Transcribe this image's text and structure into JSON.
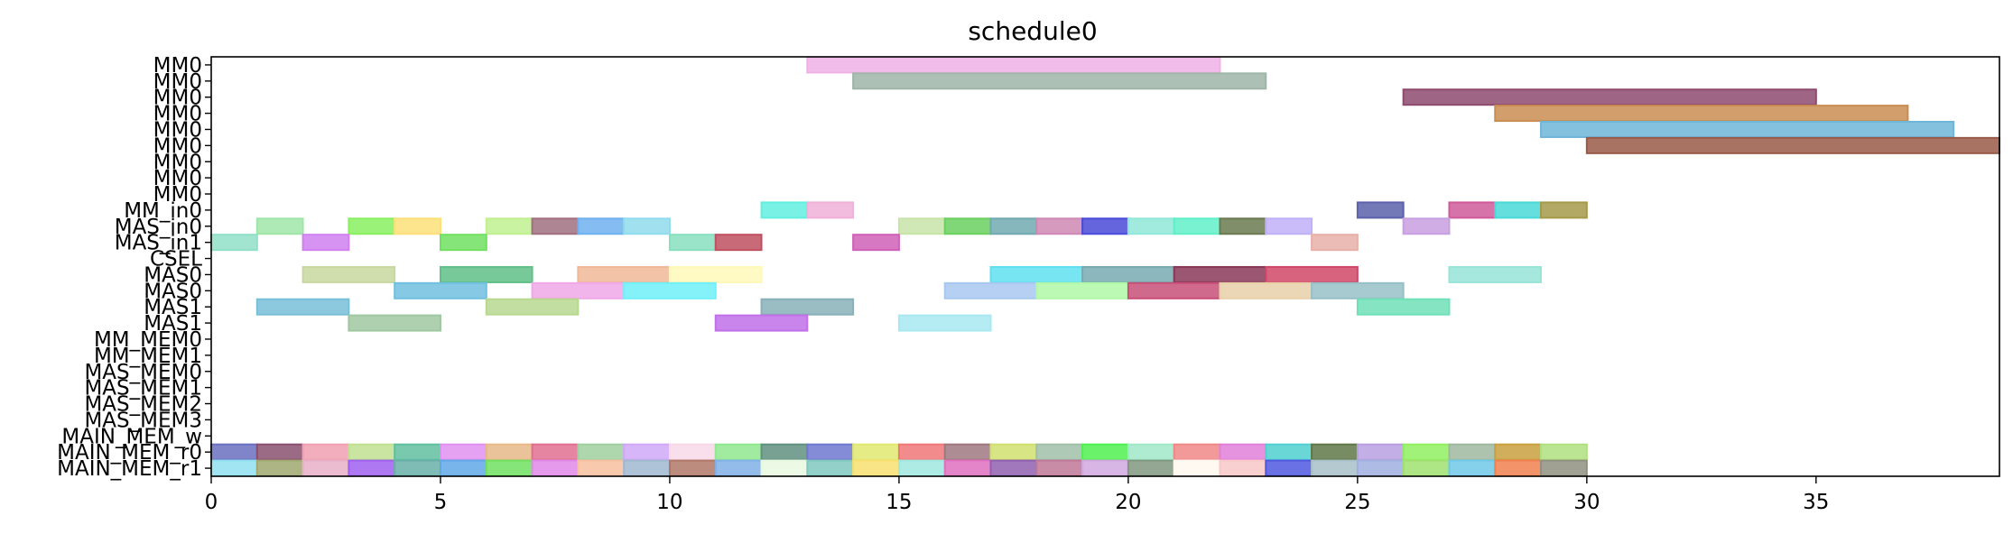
{
  "chart_data": {
    "type": "gantt",
    "title": "schedule0",
    "xlabel": "",
    "ylabel": "",
    "xlim": [
      0,
      39
    ],
    "xticks": [
      0,
      5,
      10,
      15,
      20,
      25,
      30,
      35
    ],
    "grid": false,
    "rows": [
      "MM0",
      "MM0",
      "MM0",
      "MM0",
      "MM0",
      "MM0",
      "MM0",
      "MM0",
      "MM0",
      "MM_in0",
      "MAS_in0",
      "MAS_in1",
      "CSEL",
      "MAS0",
      "MAS0",
      "MAS1",
      "MAS1",
      "MM_MEM0",
      "MM_MEM1",
      "MAS_MEM0",
      "MAS_MEM1",
      "MAS_MEM2",
      "MAS_MEM3",
      "MAIN_MEM_w",
      "MAIN_MEM_r0",
      "MAIN_MEM_r1"
    ],
    "tasks": [
      {
        "row": 0,
        "start": 13,
        "end": 22,
        "color": "#f0b0e6"
      },
      {
        "row": 1,
        "start": 14,
        "end": 23,
        "color": "#9fb5a8"
      },
      {
        "row": 2,
        "start": 26,
        "end": 35,
        "color": "#8e4a6e"
      },
      {
        "row": 3,
        "start": 28,
        "end": 37,
        "color": "#c98d52"
      },
      {
        "row": 4,
        "start": 29,
        "end": 38,
        "color": "#6fb6d8"
      },
      {
        "row": 5,
        "start": 30,
        "end": 39,
        "color": "#9a5a48"
      },
      {
        "row": 9,
        "start": 12,
        "end": 13,
        "color": "#63eee0"
      },
      {
        "row": 9,
        "start": 13,
        "end": 14,
        "color": "#f0b0d8"
      },
      {
        "row": 9,
        "start": 25,
        "end": 26,
        "color": "#5b62aa"
      },
      {
        "row": 9,
        "start": 27,
        "end": 28,
        "color": "#cf5a9a"
      },
      {
        "row": 9,
        "start": 28,
        "end": 29,
        "color": "#4ad8d8"
      },
      {
        "row": 9,
        "start": 29,
        "end": 30,
        "color": "#a49a4a"
      },
      {
        "row": 10,
        "start": 1,
        "end": 2,
        "color": "#a0e6a8"
      },
      {
        "row": 10,
        "start": 3,
        "end": 4,
        "color": "#8af062"
      },
      {
        "row": 10,
        "start": 4,
        "end": 5,
        "color": "#fce078"
      },
      {
        "row": 10,
        "start": 6,
        "end": 7,
        "color": "#c0f090"
      },
      {
        "row": 10,
        "start": 7,
        "end": 8,
        "color": "#a07080"
      },
      {
        "row": 10,
        "start": 8,
        "end": 9,
        "color": "#70b0f0"
      },
      {
        "row": 10,
        "start": 9,
        "end": 10,
        "color": "#90dcec"
      },
      {
        "row": 10,
        "start": 15,
        "end": 16,
        "color": "#c8e4a8"
      },
      {
        "row": 10,
        "start": 16,
        "end": 17,
        "color": "#6ad060"
      },
      {
        "row": 10,
        "start": 17,
        "end": 18,
        "color": "#70aab0"
      },
      {
        "row": 10,
        "start": 18,
        "end": 19,
        "color": "#d088b4"
      },
      {
        "row": 10,
        "start": 19,
        "end": 20,
        "color": "#4a4ad8"
      },
      {
        "row": 10,
        "start": 20,
        "end": 21,
        "color": "#90e8d8"
      },
      {
        "row": 10,
        "start": 21,
        "end": 22,
        "color": "#60f0c8"
      },
      {
        "row": 10,
        "start": 22,
        "end": 23,
        "color": "#6a7a50"
      },
      {
        "row": 10,
        "start": 23,
        "end": 24,
        "color": "#c0b0f8"
      },
      {
        "row": 10,
        "start": 26,
        "end": 27,
        "color": "#c8a0e0"
      },
      {
        "row": 11,
        "start": 0,
        "end": 1,
        "color": "#90e0c8"
      },
      {
        "row": 11,
        "start": 2,
        "end": 3,
        "color": "#d080f0"
      },
      {
        "row": 11,
        "start": 5,
        "end": 6,
        "color": "#70e060"
      },
      {
        "row": 11,
        "start": 10,
        "end": 11,
        "color": "#88e0c0"
      },
      {
        "row": 11,
        "start": 11,
        "end": 12,
        "color": "#c05060"
      },
      {
        "row": 11,
        "start": 14,
        "end": 15,
        "color": "#d060b8"
      },
      {
        "row": 11,
        "start": 24,
        "end": 25,
        "color": "#e8b0a8"
      },
      {
        "row": 13,
        "start": 2,
        "end": 4,
        "color": "#c8d8a0"
      },
      {
        "row": 13,
        "start": 5,
        "end": 7,
        "color": "#60c088"
      },
      {
        "row": 13,
        "start": 8,
        "end": 10,
        "color": "#f0b898"
      },
      {
        "row": 13,
        "start": 10,
        "end": 12,
        "color": "#fff8b8"
      },
      {
        "row": 13,
        "start": 17,
        "end": 19,
        "color": "#60e0f0"
      },
      {
        "row": 13,
        "start": 19,
        "end": 21,
        "color": "#78aab0"
      },
      {
        "row": 13,
        "start": 21,
        "end": 23,
        "color": "#8a3858"
      },
      {
        "row": 13,
        "start": 23,
        "end": 25,
        "color": "#d04868"
      },
      {
        "row": 13,
        "start": 27,
        "end": 29,
        "color": "#98e4d8"
      },
      {
        "row": 14,
        "start": 4,
        "end": 6,
        "color": "#70c0e0"
      },
      {
        "row": 14,
        "start": 7,
        "end": 9,
        "color": "#f0a8e8"
      },
      {
        "row": 14,
        "start": 9,
        "end": 11,
        "color": "#70f0f8"
      },
      {
        "row": 14,
        "start": 16,
        "end": 18,
        "color": "#a8c8f0"
      },
      {
        "row": 14,
        "start": 18,
        "end": 20,
        "color": "#b0f8a8"
      },
      {
        "row": 14,
        "start": 20,
        "end": 22,
        "color": "#c85078"
      },
      {
        "row": 14,
        "start": 22,
        "end": 24,
        "color": "#e8d0a8"
      },
      {
        "row": 14,
        "start": 24,
        "end": 26,
        "color": "#98c0c8"
      },
      {
        "row": 15,
        "start": 1,
        "end": 3,
        "color": "#78c0d8"
      },
      {
        "row": 15,
        "start": 6,
        "end": 8,
        "color": "#b8d890"
      },
      {
        "row": 15,
        "start": 12,
        "end": 14,
        "color": "#88b0b8"
      },
      {
        "row": 15,
        "start": 25,
        "end": 27,
        "color": "#70e0b8"
      },
      {
        "row": 16,
        "start": 3,
        "end": 5,
        "color": "#a0c8a0"
      },
      {
        "row": 16,
        "start": 11,
        "end": 13,
        "color": "#c070e8"
      },
      {
        "row": 16,
        "start": 15,
        "end": 17,
        "color": "#a8e8f0"
      },
      {
        "row": 24,
        "start": 0,
        "end": 1,
        "color": "#6a70c0"
      },
      {
        "row": 24,
        "start": 1,
        "end": 2,
        "color": "#8a5070"
      },
      {
        "row": 24,
        "start": 2,
        "end": 3,
        "color": "#f0a0b0"
      },
      {
        "row": 24,
        "start": 3,
        "end": 4,
        "color": "#c0e090"
      },
      {
        "row": 24,
        "start": 4,
        "end": 5,
        "color": "#60c0a0"
      },
      {
        "row": 24,
        "start": 5,
        "end": 6,
        "color": "#e090f0"
      },
      {
        "row": 24,
        "start": 6,
        "end": 7,
        "color": "#e8b888"
      },
      {
        "row": 24,
        "start": 7,
        "end": 8,
        "color": "#e07090"
      },
      {
        "row": 24,
        "start": 8,
        "end": 9,
        "color": "#a0d0a0"
      },
      {
        "row": 24,
        "start": 9,
        "end": 10,
        "color": "#d0a8f8"
      },
      {
        "row": 24,
        "start": 10,
        "end": 11,
        "color": "#f8d8e8"
      },
      {
        "row": 24,
        "start": 11,
        "end": 12,
        "color": "#90e890"
      },
      {
        "row": 24,
        "start": 12,
        "end": 13,
        "color": "#609080"
      },
      {
        "row": 24,
        "start": 13,
        "end": 14,
        "color": "#7078d0"
      },
      {
        "row": 24,
        "start": 14,
        "end": 15,
        "color": "#e0e870"
      },
      {
        "row": 24,
        "start": 15,
        "end": 16,
        "color": "#f07878"
      },
      {
        "row": 24,
        "start": 16,
        "end": 17,
        "color": "#a07880"
      },
      {
        "row": 24,
        "start": 17,
        "end": 18,
        "color": "#d0e070"
      },
      {
        "row": 24,
        "start": 18,
        "end": 19,
        "color": "#a0c0a8"
      },
      {
        "row": 24,
        "start": 19,
        "end": 20,
        "color": "#50f050"
      },
      {
        "row": 24,
        "start": 20,
        "end": 21,
        "color": "#a0e8c8"
      },
      {
        "row": 24,
        "start": 21,
        "end": 22,
        "color": "#f08888"
      },
      {
        "row": 24,
        "start": 22,
        "end": 23,
        "color": "#e080d8"
      },
      {
        "row": 24,
        "start": 23,
        "end": 24,
        "color": "#50d0d0"
      },
      {
        "row": 24,
        "start": 24,
        "end": 25,
        "color": "#607848"
      },
      {
        "row": 24,
        "start": 25,
        "end": 26,
        "color": "#b8a0e0"
      },
      {
        "row": 24,
        "start": 26,
        "end": 27,
        "color": "#90f060"
      },
      {
        "row": 24,
        "start": 27,
        "end": 28,
        "color": "#a0b8a0"
      },
      {
        "row": 24,
        "start": 28,
        "end": 29,
        "color": "#c8a040"
      },
      {
        "row": 24,
        "start": 29,
        "end": 30,
        "color": "#b0e080"
      },
      {
        "row": 25,
        "start": 0,
        "end": 1,
        "color": "#90e0f0"
      },
      {
        "row": 25,
        "start": 1,
        "end": 2,
        "color": "#a0a870"
      },
      {
        "row": 25,
        "start": 2,
        "end": 3,
        "color": "#e8b0c8"
      },
      {
        "row": 25,
        "start": 3,
        "end": 4,
        "color": "#a060f0"
      },
      {
        "row": 25,
        "start": 4,
        "end": 5,
        "color": "#68b0a8"
      },
      {
        "row": 25,
        "start": 5,
        "end": 6,
        "color": "#60a8e8"
      },
      {
        "row": 25,
        "start": 6,
        "end": 7,
        "color": "#70e060"
      },
      {
        "row": 25,
        "start": 7,
        "end": 8,
        "color": "#e088e8"
      },
      {
        "row": 25,
        "start": 8,
        "end": 9,
        "color": "#f8c0a0"
      },
      {
        "row": 25,
        "start": 9,
        "end": 10,
        "color": "#a0b8d0"
      },
      {
        "row": 25,
        "start": 10,
        "end": 11,
        "color": "#b07868"
      },
      {
        "row": 25,
        "start": 11,
        "end": 12,
        "color": "#80b0e8"
      },
      {
        "row": 25,
        "start": 12,
        "end": 13,
        "color": "#e8f8e0"
      },
      {
        "row": 25,
        "start": 13,
        "end": 14,
        "color": "#80c8c0"
      },
      {
        "row": 25,
        "start": 14,
        "end": 15,
        "color": "#f8e070"
      },
      {
        "row": 25,
        "start": 15,
        "end": 16,
        "color": "#a0e8e0"
      },
      {
        "row": 25,
        "start": 16,
        "end": 17,
        "color": "#e070c0"
      },
      {
        "row": 25,
        "start": 17,
        "end": 18,
        "color": "#9060b0"
      },
      {
        "row": 25,
        "start": 18,
        "end": 19,
        "color": "#c07898"
      },
      {
        "row": 25,
        "start": 19,
        "end": 20,
        "color": "#d0a8e0"
      },
      {
        "row": 25,
        "start": 20,
        "end": 21,
        "color": "#809880"
      },
      {
        "row": 25,
        "start": 21,
        "end": 22,
        "color": "#fff8f0"
      },
      {
        "row": 25,
        "start": 22,
        "end": 23,
        "color": "#f8c8c8"
      },
      {
        "row": 25,
        "start": 23,
        "end": 24,
        "color": "#5058e0"
      },
      {
        "row": 25,
        "start": 24,
        "end": 25,
        "color": "#a8c0c8"
      },
      {
        "row": 25,
        "start": 25,
        "end": 26,
        "color": "#a0b0e0"
      },
      {
        "row": 25,
        "start": 26,
        "end": 27,
        "color": "#a0e070"
      },
      {
        "row": 25,
        "start": 27,
        "end": 28,
        "color": "#70c8e8"
      },
      {
        "row": 25,
        "start": 28,
        "end": 29,
        "color": "#f08050"
      },
      {
        "row": 25,
        "start": 29,
        "end": 30,
        "color": "#909080"
      }
    ]
  }
}
